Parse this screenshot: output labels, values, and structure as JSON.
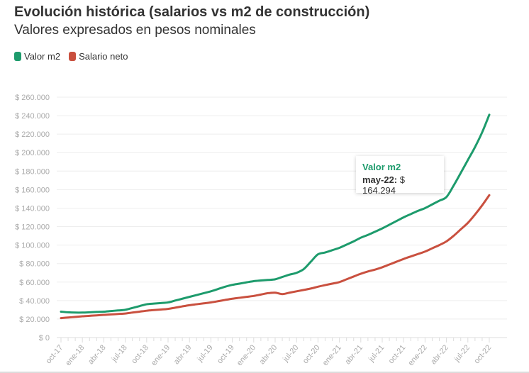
{
  "chart_data": {
    "type": "line",
    "title": "Evolución histórica (salarios vs m2 de construcción)",
    "subtitle": "Valores expresados en pesos nominales",
    "xlabel": "",
    "ylabel": "",
    "ylim": [
      0,
      260000
    ],
    "yticks": [
      0,
      20000,
      40000,
      60000,
      80000,
      100000,
      120000,
      140000,
      160000,
      180000,
      200000,
      220000,
      240000,
      260000
    ],
    "ytick_labels": [
      "$ 0",
      "$ 20.000",
      "$ 40.000",
      "$ 60.000",
      "$ 80.000",
      "$ 100.000",
      "$ 120.000",
      "$ 140.000",
      "$ 160.000",
      "$ 180.000",
      "$ 200.000",
      "$ 220.000",
      "$ 240.000",
      "$ 260.000"
    ],
    "xtick_labels": [
      "oct-17",
      "ene-18",
      "abr-18",
      "jul-18",
      "oct-18",
      "ene-19",
      "abr-19",
      "jul-19",
      "oct-19",
      "ene-20",
      "abr-20",
      "jul-20",
      "oct-20",
      "ene-21",
      "abr-21",
      "jul-21",
      "oct-21",
      "ene-22",
      "abr-22",
      "jul-22",
      "oct-22"
    ],
    "x_range": [
      "oct-17",
      "oct-22"
    ],
    "frequency": "monthly",
    "grid": true,
    "legend_position": "top-left",
    "series": [
      {
        "name": "Valor m2",
        "color": "#1d9b6c",
        "values": [
          28000,
          27300,
          27000,
          27000,
          27300,
          27700,
          28000,
          28700,
          29300,
          30000,
          32000,
          34000,
          36000,
          36700,
          37300,
          38000,
          40000,
          42000,
          44000,
          46000,
          48000,
          50000,
          52500,
          55000,
          57000,
          58300,
          59700,
          61000,
          61700,
          62300,
          63000,
          65500,
          68000,
          70000,
          74000,
          82000,
          90000,
          92000,
          94500,
          97000,
          100500,
          104000,
          108000,
          111000,
          114500,
          118000,
          122000,
          126000,
          130000,
          133500,
          137000,
          140000,
          144000,
          148000,
          152000,
          164294,
          178000,
          192000,
          206000,
          222000,
          241000
        ]
      },
      {
        "name": "Salario neto",
        "color": "#c9503f",
        "values": [
          21000,
          21700,
          22300,
          23000,
          23500,
          24000,
          24500,
          25000,
          25500,
          26000,
          27000,
          28000,
          29000,
          29700,
          30300,
          31000,
          32300,
          33700,
          35000,
          36000,
          37000,
          38000,
          39300,
          40700,
          42000,
          43000,
          44000,
          45000,
          46500,
          48000,
          48500,
          47000,
          48500,
          50000,
          51500,
          53000,
          55000,
          56700,
          58300,
          60000,
          63000,
          66000,
          69000,
          71500,
          73500,
          76000,
          79000,
          82000,
          85000,
          87700,
          90300,
          93000,
          96500,
          100000,
          104000,
          110000,
          117000,
          124000,
          133000,
          143000,
          154000
        ]
      }
    ],
    "tooltip": {
      "series": "Valor m2",
      "date": "may-22:",
      "value": "$ 164.294"
    }
  }
}
